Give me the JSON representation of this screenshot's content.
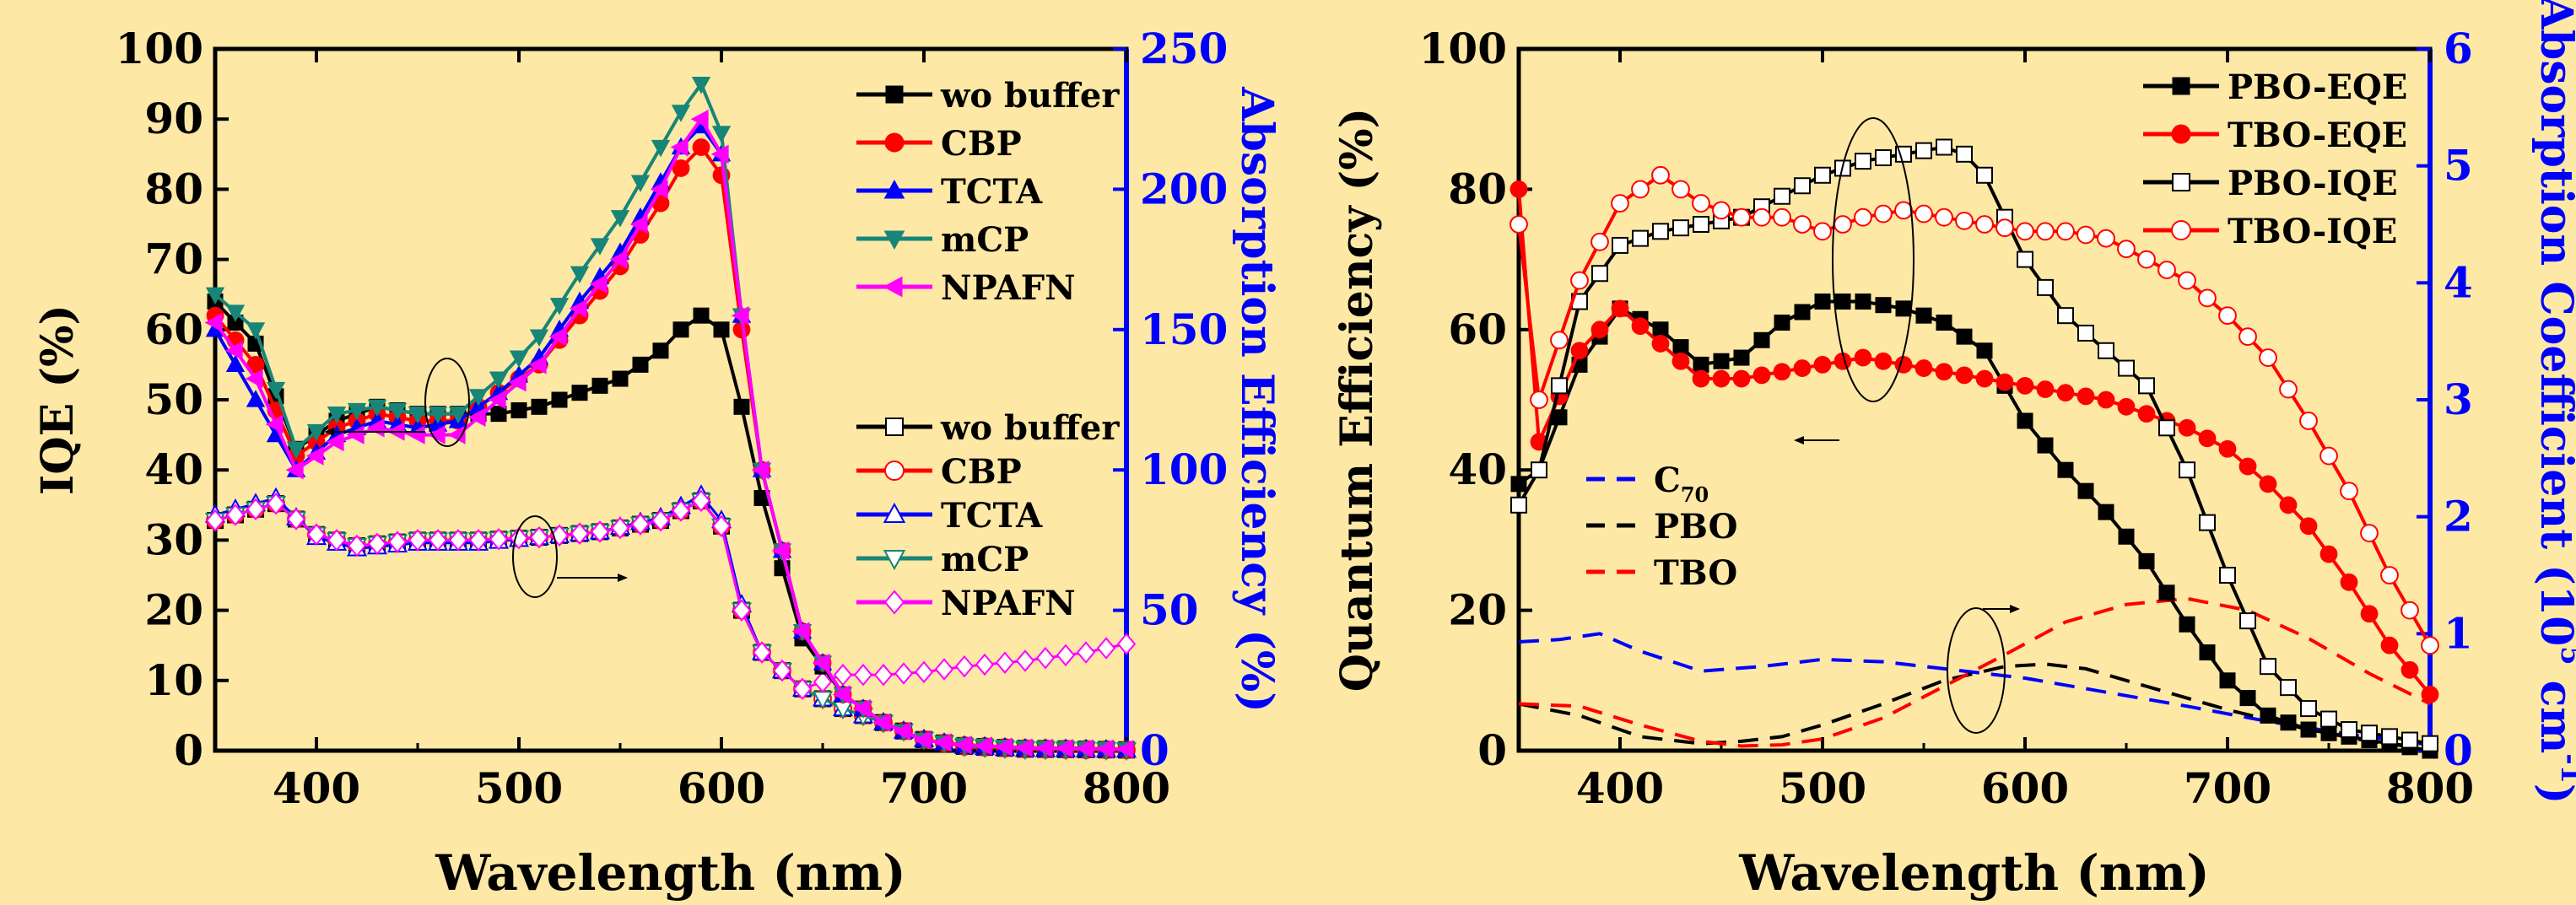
{
  "colors": {
    "background": "#fde8a5",
    "black": "#000000",
    "red": "#ff0000",
    "blue": "#0000ff",
    "teal": "#178577",
    "magenta": "#ff00ff"
  },
  "chart_data": [
    {
      "type": "line",
      "xlabel": "Wavelength (nm)",
      "ylabel": "IQE (%)",
      "y2label": "Absorption Efficiency (%)",
      "xlim": [
        350,
        800
      ],
      "ylim": [
        0,
        100
      ],
      "y2lim": [
        0,
        250
      ],
      "xticks": [
        "400",
        "500",
        "600",
        "700",
        "800"
      ],
      "yticks": [
        "0",
        "10",
        "20",
        "30",
        "40",
        "50",
        "60",
        "70",
        "80",
        "90",
        "100"
      ],
      "y2ticks": [
        "0",
        "50",
        "100",
        "150",
        "200",
        "250"
      ],
      "legend_iqe_position": "top-right",
      "legend_abs_position": "middle-right",
      "iqe_series": [
        {
          "name": "wo buffer",
          "color": "#000000",
          "marker": "square",
          "x": [
            350,
            370,
            390,
            410,
            430,
            450,
            470,
            490,
            510,
            530,
            550,
            570,
            580,
            590,
            600,
            610,
            620,
            640,
            660,
            680,
            700,
            720,
            750,
            780,
            800
          ],
          "values": [
            64,
            58,
            43,
            47,
            49,
            48,
            48,
            48,
            49,
            51,
            53,
            57,
            60,
            62,
            60,
            49,
            36,
            16,
            8,
            4,
            1.5,
            0.8,
            0.4,
            0.3,
            0.2
          ]
        },
        {
          "name": "CBP",
          "color": "#ff0000",
          "marker": "circle",
          "x": [
            350,
            370,
            390,
            410,
            430,
            450,
            470,
            490,
            510,
            530,
            550,
            570,
            580,
            590,
            600,
            610,
            620,
            640,
            660,
            680,
            700,
            720,
            750,
            780,
            800
          ],
          "values": [
            62,
            55,
            42,
            46,
            48,
            47,
            47,
            51,
            55,
            62,
            69,
            78,
            83,
            86,
            82,
            60,
            40,
            17,
            8,
            4,
            1.5,
            0.8,
            0.4,
            0.3,
            0.2
          ]
        },
        {
          "name": "TCTA",
          "color": "#0000ff",
          "marker": "triangle-up",
          "x": [
            350,
            370,
            390,
            410,
            430,
            450,
            470,
            490,
            510,
            530,
            550,
            570,
            580,
            590,
            600,
            610,
            620,
            640,
            660,
            680,
            700,
            720,
            750,
            780,
            800
          ],
          "values": [
            60,
            50,
            40,
            45,
            47,
            46,
            47,
            51,
            56,
            64,
            71,
            81,
            86,
            89,
            85,
            62,
            40,
            17,
            8,
            4,
            1.5,
            0.8,
            0.4,
            0.3,
            0.2
          ]
        },
        {
          "name": "mCP",
          "color": "#178577",
          "marker": "triangle-down",
          "x": [
            350,
            370,
            390,
            410,
            430,
            450,
            470,
            490,
            510,
            530,
            550,
            570,
            580,
            590,
            600,
            610,
            620,
            640,
            660,
            680,
            700,
            720,
            750,
            780,
            800
          ],
          "values": [
            65,
            60,
            43,
            48,
            49,
            48,
            48,
            53,
            59,
            68,
            76,
            86,
            91,
            95,
            88,
            62,
            40,
            17,
            8,
            4,
            1.5,
            0.8,
            0.4,
            0.3,
            0.2
          ]
        },
        {
          "name": "NPAFN",
          "color": "#ff00ff",
          "marker": "triangle-left",
          "x": [
            350,
            370,
            390,
            410,
            430,
            450,
            470,
            490,
            510,
            530,
            550,
            570,
            580,
            590,
            600,
            610,
            620,
            640,
            660,
            680,
            700,
            720,
            750,
            780,
            800
          ],
          "values": [
            61,
            53,
            40,
            44,
            46,
            45,
            45,
            50,
            55,
            63,
            70,
            80,
            86,
            90,
            85,
            62,
            40,
            17,
            8,
            4,
            1.5,
            0.8,
            0.4,
            0.3,
            0.2
          ]
        }
      ],
      "absorption_series": [
        {
          "name": "wo buffer",
          "color": "#000000",
          "marker": "open-square",
          "x": [
            350,
            380,
            400,
            420,
            450,
            480,
            510,
            540,
            570,
            590,
            600,
            610,
            620,
            640,
            660,
            680,
            700,
            720,
            750,
            780,
            800
          ],
          "values": [
            82,
            88,
            77,
            73,
            75,
            75,
            76,
            78,
            82,
            89,
            80,
            50,
            35,
            22,
            15,
            10,
            4,
            1.5,
            0.5,
            0.3,
            0.2
          ]
        },
        {
          "name": "CBP",
          "color": "#ff0000",
          "marker": "open-circle",
          "x": [
            350,
            380,
            400,
            420,
            450,
            480,
            510,
            540,
            570,
            590,
            600,
            610,
            620,
            640,
            660,
            680,
            700,
            720,
            750,
            780,
            800
          ],
          "values": [
            82,
            88,
            77,
            73,
            75,
            75,
            76,
            78,
            82,
            89,
            80,
            50,
            35,
            22,
            15,
            10,
            4,
            1.5,
            0.5,
            0.3,
            0.2
          ]
        },
        {
          "name": "TCTA",
          "color": "#0000ff",
          "marker": "open-triangle-up",
          "x": [
            350,
            380,
            400,
            420,
            450,
            480,
            510,
            540,
            570,
            590,
            600,
            610,
            620,
            640,
            660,
            680,
            700,
            720,
            750,
            780,
            800
          ],
          "values": [
            84,
            90,
            76,
            72,
            74,
            74,
            76,
            78,
            83,
            91,
            82,
            52,
            35,
            22,
            15,
            10,
            4,
            1.5,
            0.5,
            0.3,
            0.2
          ]
        },
        {
          "name": "mCP",
          "color": "#178577",
          "marker": "open-triangle-down",
          "x": [
            350,
            380,
            400,
            420,
            450,
            480,
            510,
            540,
            570,
            590,
            600,
            610,
            620,
            640,
            660,
            680,
            700,
            720,
            750,
            780,
            800
          ],
          "values": [
            82,
            88,
            77,
            73,
            75,
            75,
            76,
            78,
            82,
            89,
            80,
            50,
            35,
            22,
            15,
            10,
            4,
            1.5,
            0.5,
            0.3,
            0.2
          ]
        },
        {
          "name": "NPAFN",
          "color": "#ff00ff",
          "marker": "open-diamond",
          "x": [
            350,
            380,
            400,
            420,
            450,
            480,
            510,
            540,
            570,
            590,
            600,
            610,
            620,
            640,
            660,
            680,
            700,
            720,
            750,
            780,
            800
          ],
          "values": [
            82,
            88,
            77,
            73,
            75,
            75,
            76,
            78,
            82,
            89,
            80,
            50,
            35,
            22,
            27,
            27,
            28,
            30,
            32,
            35,
            38
          ]
        }
      ]
    },
    {
      "type": "line",
      "xlabel": "Wavelength (nm)",
      "ylabel": "Quantum Efficiency (%)",
      "y2label_main": "Absorption Coefficient (10",
      "y2label_sup": "5",
      "y2label_mid": " cm",
      "y2label_sup2": "-1",
      "y2label_end": ")",
      "xlim": [
        350,
        800
      ],
      "ylim": [
        0,
        100
      ],
      "y2lim": [
        0,
        6
      ],
      "xticks": [
        "400",
        "500",
        "600",
        "700",
        "800"
      ],
      "yticks": [
        "0",
        "20",
        "40",
        "60",
        "80",
        "100"
      ],
      "y2ticks": [
        "0",
        "1",
        "2",
        "3",
        "4",
        "5",
        "6"
      ],
      "legend_qe_position": "top-right",
      "legend_abs_position": "middle-left",
      "qe_series": [
        {
          "name": "PBO-EQE",
          "color": "#000000",
          "marker": "square",
          "x": [
            350,
            360,
            380,
            400,
            420,
            440,
            460,
            480,
            500,
            520,
            540,
            560,
            580,
            600,
            620,
            640,
            660,
            680,
            700,
            720,
            740,
            760,
            780,
            800
          ],
          "values": [
            38,
            40,
            55,
            63,
            60,
            55,
            56,
            61,
            64,
            64,
            63,
            61,
            57,
            47,
            40,
            34,
            27,
            18,
            10,
            5,
            3,
            2,
            1,
            0
          ]
        },
        {
          "name": "TBO-EQE",
          "color": "#ff0000",
          "marker": "circle",
          "x": [
            350,
            360,
            380,
            400,
            420,
            440,
            460,
            480,
            500,
            520,
            540,
            560,
            580,
            600,
            620,
            640,
            660,
            680,
            700,
            720,
            740,
            760,
            780,
            800
          ],
          "values": [
            80,
            44,
            57,
            63,
            58,
            53,
            53,
            54,
            55,
            56,
            55,
            54,
            53,
            52,
            51,
            50,
            48,
            46,
            43,
            38,
            32,
            24,
            15,
            8
          ]
        },
        {
          "name": "PBO-IQE",
          "color": "#000000",
          "marker": "open-square",
          "x": [
            350,
            360,
            380,
            400,
            420,
            440,
            460,
            480,
            500,
            520,
            540,
            560,
            570,
            580,
            600,
            620,
            640,
            660,
            680,
            700,
            720,
            740,
            760,
            780,
            800
          ],
          "values": [
            35,
            40,
            64,
            72,
            74,
            75,
            76,
            79,
            82,
            84,
            85,
            86,
            85,
            82,
            70,
            62,
            57,
            52,
            40,
            25,
            12,
            6,
            3,
            2,
            1
          ]
        },
        {
          "name": "TBO-IQE",
          "color": "#ff0000",
          "marker": "open-circle",
          "x": [
            350,
            360,
            380,
            400,
            420,
            440,
            460,
            480,
            500,
            520,
            540,
            560,
            580,
            600,
            620,
            640,
            660,
            680,
            700,
            720,
            740,
            760,
            780,
            800
          ],
          "values": [
            75,
            50,
            67,
            78,
            82,
            78,
            76,
            76,
            74,
            76,
            77,
            76,
            75,
            74,
            74,
            73,
            70,
            67,
            62,
            56,
            47,
            37,
            25,
            15
          ]
        }
      ],
      "absorption_series": [
        {
          "name": "C",
          "name_sub": "70",
          "color": "#0000ff",
          "style": "dashed",
          "x": [
            350,
            370,
            390,
            410,
            440,
            470,
            500,
            530,
            560,
            580,
            600,
            640,
            680,
            720,
            760,
            800
          ],
          "values": [
            0.93,
            0.95,
            1.0,
            0.85,
            0.68,
            0.72,
            0.78,
            0.76,
            0.7,
            0.66,
            0.62,
            0.5,
            0.38,
            0.25,
            0.14,
            0.05
          ]
        },
        {
          "name": "PBO",
          "color": "#000000",
          "style": "dashed",
          "x": [
            350,
            380,
            410,
            440,
            460,
            480,
            500,
            530,
            560,
            590,
            610,
            630,
            650,
            670,
            700,
            740,
            770,
            800
          ],
          "values": [
            0.4,
            0.3,
            0.12,
            0.06,
            0.08,
            0.12,
            0.22,
            0.4,
            0.6,
            0.72,
            0.74,
            0.7,
            0.6,
            0.5,
            0.35,
            0.18,
            0.08,
            0.02
          ]
        },
        {
          "name": "TBO",
          "color": "#ff0000",
          "style": "dashed",
          "x": [
            350,
            380,
            410,
            440,
            460,
            480,
            500,
            530,
            560,
            590,
            620,
            650,
            680,
            710,
            740,
            770,
            800
          ],
          "values": [
            0.4,
            0.38,
            0.22,
            0.08,
            0.04,
            0.05,
            0.1,
            0.28,
            0.55,
            0.82,
            1.1,
            1.25,
            1.3,
            1.2,
            0.96,
            0.66,
            0.4
          ]
        }
      ]
    }
  ]
}
